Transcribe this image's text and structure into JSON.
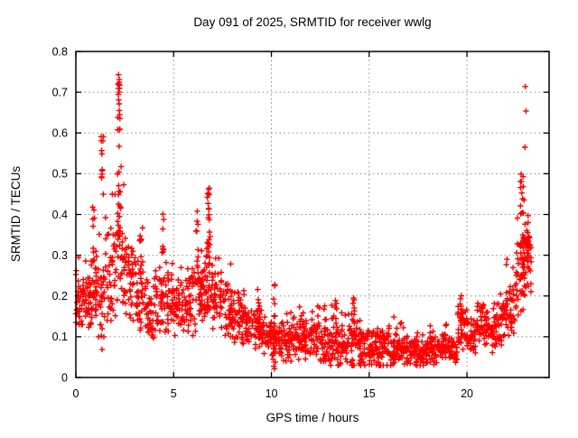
{
  "chart_data": {
    "type": "scatter",
    "title": "Day 091 of 2025, SRMTID for receiver wwlg",
    "xlabel": "GPS time / hours",
    "ylabel": "SRMTID / TECUs",
    "xlim": [
      0,
      24.2
    ],
    "ylim": [
      0,
      0.8
    ],
    "xticks": [
      0,
      5,
      10,
      15,
      20
    ],
    "yticks": [
      0,
      0.1,
      0.2,
      0.3,
      0.4,
      0.5,
      0.6,
      0.7,
      0.8
    ],
    "grid": true,
    "grid_style": "dotted",
    "legend": "none",
    "marker": "plus",
    "marker_color": "#ff0000",
    "axis_color": "#000000",
    "grid_color": "#888888",
    "background": "#ffffff",
    "data_extent": {
      "x_min": 0.0,
      "x_max": 23.3,
      "y_min": 0.02,
      "y_max": 0.743
    },
    "shape_summary": "High scatter 0.15-0.74 TECUs in first 3 hours peaking near hour 2.2, secondary spike to 0.46 near hour 6.8, slow decline to a broad minimum band 0.03-0.13 between hours 14-19, then steep rise after hour 22 to 0.71 near hour 23",
    "density_bins": {
      "format": "[x_start_hr, x_end_hr, y_min, y_max, y_mode, point_count]",
      "bins": [
        [
          0.0,
          0.5,
          0.13,
          0.33,
          0.2,
          45
        ],
        [
          0.5,
          1.0,
          0.12,
          0.31,
          0.19,
          45
        ],
        [
          1.0,
          1.5,
          0.1,
          0.38,
          0.21,
          45
        ],
        [
          1.5,
          2.0,
          0.14,
          0.45,
          0.24,
          42
        ],
        [
          2.0,
          2.5,
          0.15,
          0.55,
          0.3,
          40
        ],
        [
          2.5,
          3.0,
          0.14,
          0.42,
          0.24,
          40
        ],
        [
          3.0,
          3.5,
          0.1,
          0.38,
          0.2,
          40
        ],
        [
          3.5,
          4.0,
          0.08,
          0.28,
          0.16,
          40
        ],
        [
          4.0,
          4.5,
          0.1,
          0.3,
          0.19,
          40
        ],
        [
          4.5,
          5.0,
          0.1,
          0.3,
          0.18,
          40
        ],
        [
          5.0,
          5.5,
          0.1,
          0.28,
          0.18,
          40
        ],
        [
          5.5,
          6.0,
          0.1,
          0.3,
          0.18,
          40
        ],
        [
          6.0,
          6.5,
          0.1,
          0.32,
          0.19,
          40
        ],
        [
          6.5,
          7.0,
          0.12,
          0.33,
          0.22,
          40
        ],
        [
          7.0,
          7.5,
          0.12,
          0.3,
          0.19,
          40
        ],
        [
          7.5,
          8.0,
          0.1,
          0.28,
          0.17,
          40
        ],
        [
          8.0,
          8.5,
          0.08,
          0.24,
          0.15,
          40
        ],
        [
          8.5,
          9.0,
          0.08,
          0.22,
          0.13,
          40
        ],
        [
          9.0,
          9.5,
          0.07,
          0.2,
          0.12,
          40
        ],
        [
          9.5,
          10.0,
          0.05,
          0.16,
          0.1,
          40
        ],
        [
          10.0,
          10.5,
          0.04,
          0.15,
          0.09,
          40
        ],
        [
          10.5,
          11.0,
          0.04,
          0.16,
          0.09,
          40
        ],
        [
          11.0,
          11.5,
          0.04,
          0.18,
          0.09,
          40
        ],
        [
          11.5,
          12.0,
          0.04,
          0.16,
          0.09,
          40
        ],
        [
          12.0,
          12.5,
          0.04,
          0.19,
          0.09,
          40
        ],
        [
          12.5,
          13.0,
          0.04,
          0.18,
          0.08,
          40
        ],
        [
          13.0,
          13.5,
          0.03,
          0.19,
          0.08,
          40
        ],
        [
          13.5,
          14.0,
          0.03,
          0.16,
          0.08,
          40
        ],
        [
          14.0,
          14.5,
          0.03,
          0.19,
          0.08,
          40
        ],
        [
          14.5,
          15.0,
          0.03,
          0.15,
          0.07,
          40
        ],
        [
          15.0,
          15.5,
          0.03,
          0.14,
          0.07,
          40
        ],
        [
          15.5,
          16.0,
          0.03,
          0.16,
          0.07,
          40
        ],
        [
          16.0,
          16.5,
          0.03,
          0.17,
          0.07,
          40
        ],
        [
          16.5,
          17.0,
          0.03,
          0.14,
          0.07,
          40
        ],
        [
          17.0,
          17.5,
          0.03,
          0.13,
          0.07,
          40
        ],
        [
          17.5,
          18.0,
          0.03,
          0.12,
          0.06,
          40
        ],
        [
          18.0,
          18.5,
          0.03,
          0.13,
          0.07,
          40
        ],
        [
          18.5,
          19.0,
          0.04,
          0.14,
          0.07,
          40
        ],
        [
          19.0,
          19.5,
          0.03,
          0.11,
          0.07,
          40
        ],
        [
          19.5,
          20.0,
          0.06,
          0.21,
          0.13,
          40
        ],
        [
          20.0,
          20.5,
          0.06,
          0.16,
          0.1,
          40
        ],
        [
          20.5,
          21.0,
          0.08,
          0.22,
          0.13,
          40
        ],
        [
          21.0,
          21.5,
          0.05,
          0.2,
          0.12,
          40
        ],
        [
          21.5,
          22.0,
          0.07,
          0.22,
          0.14,
          40
        ],
        [
          22.0,
          22.5,
          0.1,
          0.28,
          0.17,
          40
        ],
        [
          22.5,
          23.0,
          0.15,
          0.45,
          0.25,
          35
        ],
        [
          23.0,
          23.3,
          0.2,
          0.42,
          0.3,
          25
        ]
      ]
    },
    "spike_clusters": {
      "format": "[x_center_hr, x_halfwidth_hr, y_min, y_max, point_count]",
      "clusters": [
        [
          0.9,
          0.05,
          0.28,
          0.46,
          8
        ],
        [
          1.35,
          0.06,
          0.44,
          0.605,
          12
        ],
        [
          2.2,
          0.07,
          0.55,
          0.745,
          14
        ],
        [
          2.2,
          0.1,
          0.32,
          0.55,
          18
        ],
        [
          3.3,
          0.05,
          0.25,
          0.38,
          8
        ],
        [
          4.45,
          0.05,
          0.25,
          0.43,
          8
        ],
        [
          6.2,
          0.06,
          0.25,
          0.42,
          10
        ],
        [
          6.8,
          0.08,
          0.25,
          0.465,
          22
        ],
        [
          9.3,
          0.05,
          0.12,
          0.22,
          6
        ],
        [
          10.15,
          0.06,
          0.02,
          0.23,
          12
        ],
        [
          13.3,
          0.05,
          0.1,
          0.19,
          6
        ],
        [
          14.2,
          0.05,
          0.1,
          0.2,
          6
        ],
        [
          19.7,
          0.06,
          0.12,
          0.21,
          8
        ],
        [
          22.85,
          0.12,
          0.2,
          0.52,
          38
        ],
        [
          23.1,
          0.1,
          0.22,
          0.42,
          18
        ]
      ]
    },
    "outlier_points": {
      "format": "[x_hr, y_TECUs]",
      "points": [
        [
          1.34,
          0.069
        ],
        [
          1.43,
          0.1
        ],
        [
          2.18,
          0.743
        ],
        [
          2.22,
          0.731
        ],
        [
          2.2,
          0.719
        ],
        [
          2.21,
          0.7
        ],
        [
          2.19,
          0.681
        ],
        [
          2.22,
          0.655
        ],
        [
          2.24,
          0.645
        ],
        [
          6.82,
          0.465
        ],
        [
          6.79,
          0.452
        ],
        [
          10.17,
          0.228
        ],
        [
          22.05,
          0.29
        ],
        [
          22.98,
          0.714
        ],
        [
          23.02,
          0.654
        ],
        [
          22.96,
          0.565
        ]
      ]
    }
  }
}
